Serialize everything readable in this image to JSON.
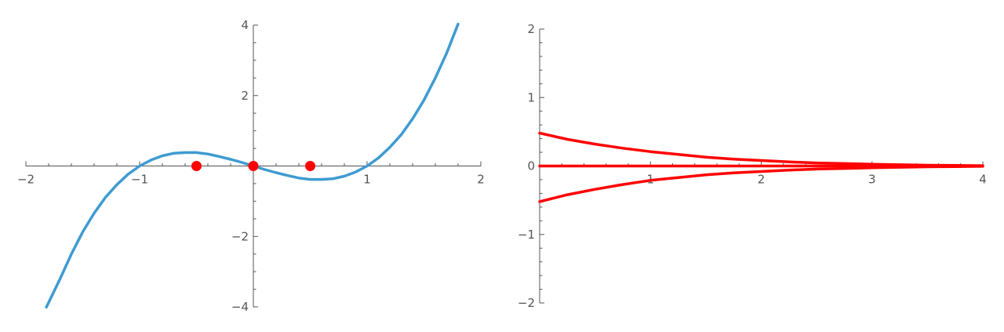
{
  "chart_data": [
    {
      "type": "line",
      "title": "",
      "xlabel": "",
      "ylabel": "",
      "xlim": [
        -2,
        2
      ],
      "ylim": [
        -4,
        4
      ],
      "grid": false,
      "legend": "none",
      "x_ticks": [
        {
          "value": -2,
          "label": "−2"
        },
        {
          "value": -1,
          "label": "−1"
        },
        {
          "value": 1,
          "label": "1"
        },
        {
          "value": 2,
          "label": "2"
        }
      ],
      "y_ticks": [
        {
          "value": -4,
          "label": "−4"
        },
        {
          "value": -2,
          "label": "−2"
        },
        {
          "value": 2,
          "label": "2"
        },
        {
          "value": 4,
          "label": "4"
        }
      ],
      "series": [
        {
          "type": "line",
          "color": "#3f9bd1",
          "x": [
            -1.82,
            -1.7,
            -1.6,
            -1.5,
            -1.4,
            -1.3,
            -1.2,
            -1.1,
            -1.0,
            -0.9,
            -0.8,
            -0.7,
            -0.6,
            -0.5,
            -0.4,
            -0.3,
            -0.2,
            -0.1,
            0.0,
            0.1,
            0.2,
            0.3,
            0.4,
            0.5,
            0.6,
            0.7,
            0.8,
            0.9,
            1.0,
            1.1,
            1.2,
            1.3,
            1.4,
            1.5,
            1.6,
            1.7,
            1.8
          ],
          "y": [
            -4.01,
            -3.21,
            -2.5,
            -1.87,
            -1.34,
            -0.89,
            -0.53,
            -0.23,
            0.0,
            0.17,
            0.29,
            0.36,
            0.38,
            0.38,
            0.34,
            0.27,
            0.19,
            0.1,
            0.0,
            -0.1,
            -0.19,
            -0.27,
            -0.34,
            -0.38,
            -0.38,
            -0.36,
            -0.29,
            -0.17,
            0.0,
            0.23,
            0.53,
            0.89,
            1.34,
            1.87,
            2.5,
            3.21,
            4.03
          ]
        },
        {
          "type": "scatter",
          "color": "#ff0000",
          "x": [
            -0.5,
            0.0,
            0.5
          ],
          "y": [
            0,
            0,
            0
          ]
        }
      ]
    },
    {
      "type": "line",
      "title": "",
      "xlabel": "",
      "ylabel": "",
      "xlim": [
        0,
        4
      ],
      "ylim": [
        -2,
        2
      ],
      "grid": false,
      "legend": "none",
      "x_ticks": [
        {
          "value": 1,
          "label": "1"
        },
        {
          "value": 2,
          "label": "2"
        },
        {
          "value": 3,
          "label": "3"
        },
        {
          "value": 4,
          "label": "4"
        }
      ],
      "y_ticks": [
        {
          "value": -2,
          "label": "−2"
        },
        {
          "value": -1,
          "label": "−1"
        },
        {
          "value": 0,
          "label": "0"
        },
        {
          "value": 1,
          "label": "1"
        },
        {
          "value": 2,
          "label": "2"
        }
      ],
      "series": [
        {
          "type": "line",
          "color": "#ff0000",
          "x": [
            0,
            0.25,
            0.5,
            0.75,
            1.0,
            1.25,
            1.5,
            1.75,
            2.0,
            2.25,
            2.5,
            2.75,
            3.0,
            3.25,
            3.5,
            3.75,
            4.0
          ],
          "y": [
            0.48,
            0.39,
            0.32,
            0.26,
            0.21,
            0.17,
            0.13,
            0.1,
            0.08,
            0.06,
            0.045,
            0.035,
            0.025,
            0.018,
            0.012,
            0.008,
            0.005
          ]
        },
        {
          "type": "line",
          "color": "#ff0000",
          "x": [
            0,
            4
          ],
          "y": [
            0,
            0
          ]
        },
        {
          "type": "line",
          "color": "#ff0000",
          "x": [
            0,
            0.25,
            0.5,
            0.75,
            1.0,
            1.25,
            1.5,
            1.75,
            2.0,
            2.25,
            2.5,
            2.75,
            3.0,
            3.25,
            3.5,
            3.75,
            4.0
          ],
          "y": [
            -0.52,
            -0.42,
            -0.34,
            -0.27,
            -0.21,
            -0.17,
            -0.13,
            -0.1,
            -0.08,
            -0.06,
            -0.045,
            -0.035,
            -0.025,
            -0.018,
            -0.012,
            -0.008,
            -0.005
          ]
        }
      ]
    }
  ]
}
